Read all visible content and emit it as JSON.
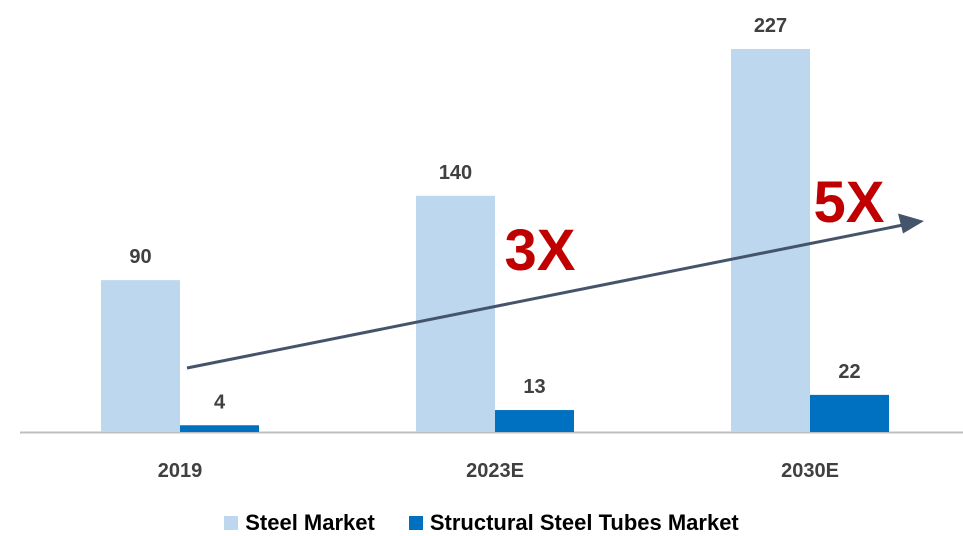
{
  "chart_data": {
    "type": "bar",
    "categories": [
      "2019",
      "2023E",
      "2030E"
    ],
    "series": [
      {
        "name": "Steel Market",
        "values": [
          90,
          140,
          227
        ],
        "color": "#BDD7EE"
      },
      {
        "name": "Structural Steel  Tubes Market",
        "values": [
          4,
          13,
          22
        ],
        "color": "#0070C0"
      }
    ],
    "ylim": [
      0,
      250
    ],
    "grid": false,
    "legend_position": "bottom",
    "annotations": [
      {
        "text": "3X",
        "color": "#C00000"
      },
      {
        "text": "5X",
        "color": "#C00000"
      }
    ],
    "trend_arrow_color": "#44546A",
    "axis_color": "#BFBFBF",
    "label_color": "#404040"
  }
}
